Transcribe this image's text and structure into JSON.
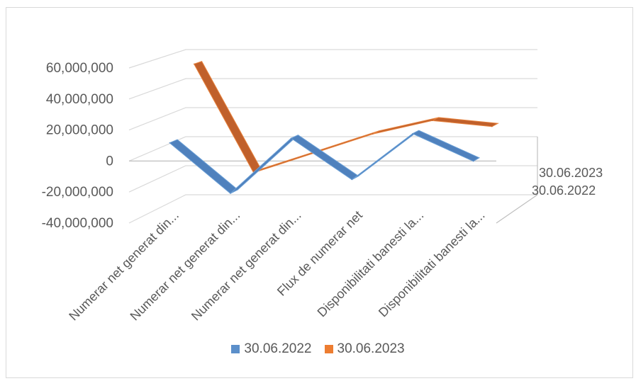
{
  "chart_data": {
    "type": "line",
    "subtype": "3d-line",
    "categories": [
      "Numerar net generat din...",
      "Numerar net generat din...",
      "Numerar net generat din...",
      "Flux de numerar net",
      "Disponibilitati banesti la...",
      "Disponibilitati  banesti la..."
    ],
    "series": [
      {
        "name": "30.06.2022",
        "color": "#4f81bd",
        "values": [
          9000000,
          -24000000,
          12000000,
          -15000000,
          15000000,
          -3000000
        ]
      },
      {
        "name": "30.06.2023",
        "color": "#c0602b",
        "values": [
          55000000,
          -18000000,
          -5000000,
          8000000,
          17000000,
          13000000
        ]
      }
    ],
    "y_ticks": [
      "60,000,000",
      "40,000,000",
      "20,000,000",
      "0",
      "-20,000,000",
      "-40,000,000"
    ],
    "y_tick_values": [
      60000000,
      40000000,
      20000000,
      0,
      -20000000,
      -40000000
    ],
    "depth_labels": [
      "30.06.2023",
      "30.06.2022"
    ],
    "ylim": [
      -40000000,
      60000000
    ],
    "grid": true,
    "legend_position": "bottom",
    "legend": [
      "30.06.2022",
      "30.06.2023"
    ]
  }
}
